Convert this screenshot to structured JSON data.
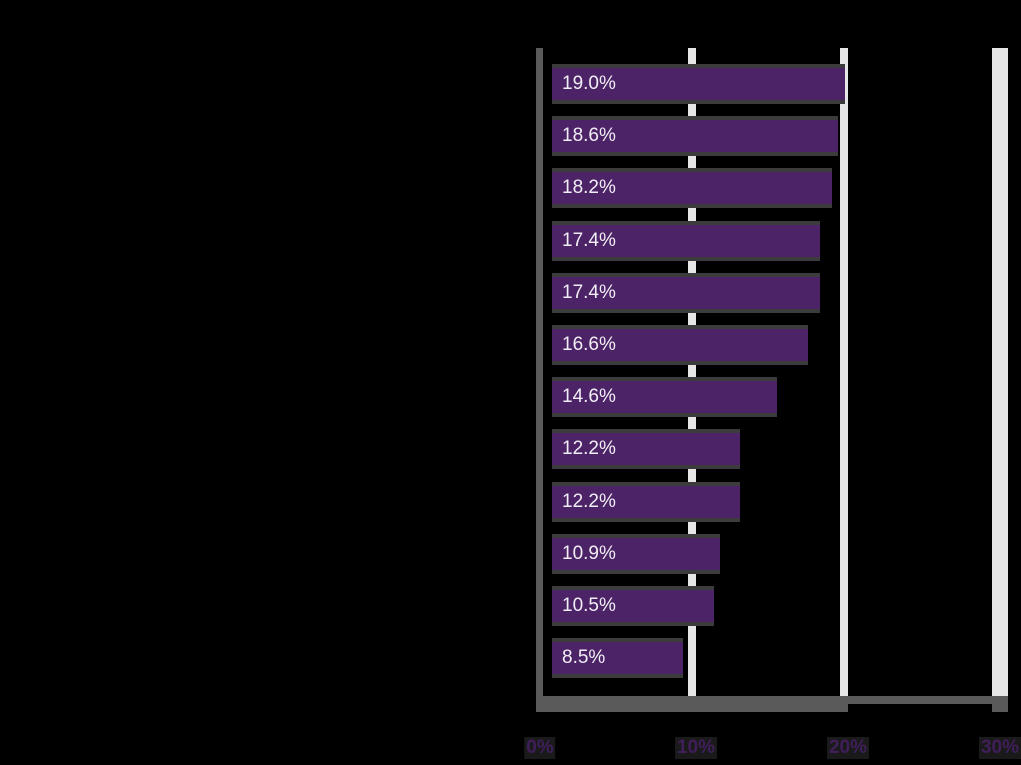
{
  "chart_data": {
    "type": "bar",
    "orientation": "horizontal",
    "title": "",
    "xlabel": "",
    "ylabel": "",
    "categories": [
      "",
      "",
      "",
      "",
      "",
      "",
      "",
      "",
      "",
      "",
      "",
      ""
    ],
    "values": [
      19.0,
      18.6,
      18.2,
      17.4,
      17.4,
      16.6,
      14.6,
      12.2,
      12.2,
      10.9,
      10.5,
      8.5
    ],
    "value_labels": [
      "19.0%",
      "18.6%",
      "18.2%",
      "17.4%",
      "17.4%",
      "16.6%",
      "14.6%",
      "12.2%",
      "12.2%",
      "10.9%",
      "10.5%",
      "8.5%"
    ],
    "xlim": [
      0,
      30
    ],
    "x_ticks": [
      "0%",
      "10%",
      "20%",
      "30%"
    ],
    "grid": true,
    "legend": null,
    "colors": {
      "bar": "#4b2366",
      "bar_outline": "#3c3c3c",
      "label": "#f2eef5",
      "axis": "#5a5a5a",
      "grid": "#e6e6e6",
      "tick_label": "#3f1e5a",
      "background": "#000000"
    }
  }
}
